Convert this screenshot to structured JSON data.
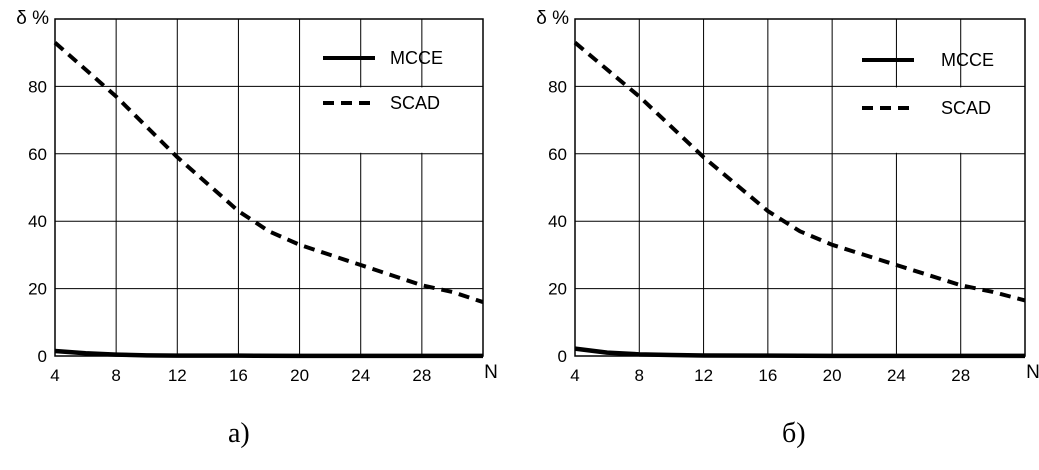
{
  "chart_data": [
    {
      "type": "line",
      "caption": "а)",
      "ylabel": "δ %",
      "xlabel": "N",
      "xlim": [
        4,
        32
      ],
      "ylim": [
        0,
        100
      ],
      "xticks": [
        4,
        8,
        12,
        16,
        20,
        24,
        28
      ],
      "yticks": [
        0,
        20,
        40,
        60,
        80
      ],
      "grid": true,
      "legend_position": "top-right",
      "series": [
        {
          "name": "МССЕ",
          "style": "solid",
          "x": [
            4,
            6,
            8,
            10,
            12,
            16,
            20,
            24,
            28,
            32
          ],
          "y": [
            1.5,
            0.8,
            0.4,
            0.2,
            0.1,
            0.1,
            0.05,
            0.05,
            0.05,
            0.05
          ]
        },
        {
          "name": "SCAD",
          "style": "dashed",
          "x": [
            4,
            6,
            8,
            10,
            12,
            14,
            16,
            18,
            20,
            22,
            24,
            26,
            28,
            30,
            32
          ],
          "y": [
            93,
            85,
            77,
            68,
            59,
            51,
            43,
            37,
            33,
            30,
            27,
            24,
            21,
            19,
            16
          ]
        }
      ]
    },
    {
      "type": "line",
      "caption": "б)",
      "ylabel": "δ %",
      "xlabel": "N",
      "xlim": [
        4,
        32
      ],
      "ylim": [
        0,
        100
      ],
      "xticks": [
        4,
        8,
        12,
        16,
        20,
        24,
        28
      ],
      "yticks": [
        0,
        20,
        40,
        60,
        80
      ],
      "grid": true,
      "legend_position": "top-right",
      "series": [
        {
          "name": "МССЕ",
          "style": "solid",
          "x": [
            4,
            6,
            8,
            10,
            12,
            16,
            20,
            24,
            28,
            32
          ],
          "y": [
            2.2,
            1.0,
            0.5,
            0.3,
            0.15,
            0.1,
            0.05,
            0.05,
            0.05,
            0.05
          ]
        },
        {
          "name": "SCAD",
          "style": "dashed",
          "x": [
            4,
            6,
            8,
            10,
            12,
            14,
            16,
            18,
            20,
            22,
            24,
            26,
            28,
            30,
            32
          ],
          "y": [
            93,
            85,
            77,
            68,
            59,
            51,
            43,
            37,
            33,
            30,
            27,
            24,
            21,
            19,
            16.5
          ]
        }
      ]
    }
  ]
}
